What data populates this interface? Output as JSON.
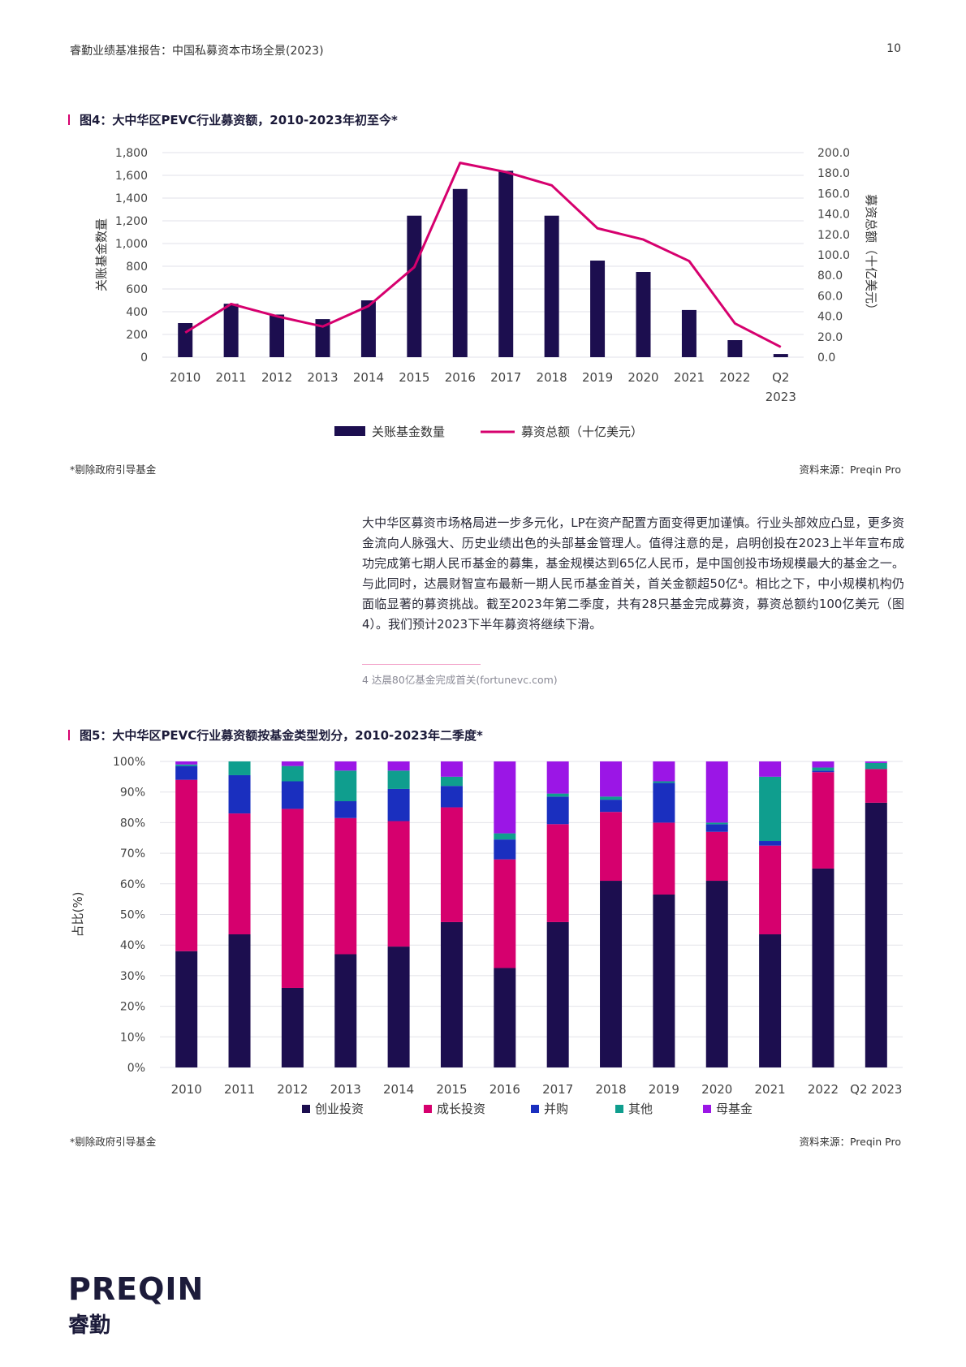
{
  "header": {
    "title": "睿勤业绩基准报告：中国私募资本市场全景(2023)",
    "page_number": "10"
  },
  "fig4": {
    "title": "图4：大中华区PEVC行业募资额，2010-2023年初至今*",
    "note": "*剔除政府引导基金",
    "source": "资料来源：Preqin Pro"
  },
  "body": {
    "paragraph": "大中华区募资市场格局进一步多元化，LP在资产配置方面变得更加谨慎。行业头部效应凸显，更多资金流向人脉强大、历史业绩出色的头部基金管理人。值得注意的是，启明创投在2023上半年宣布成功完成第七期人民币基金的募集，基金规模达到65亿人民币，是中国创投市场规模最大的基金之一。与此同时，达晨财智宣布最新一期人民币基金首关，首关金额超50亿⁴。相比之下，中小规模机构仍面临显著的募资挑战。截至2023年第二季度，共有28只基金完成募资，募资总额约100亿美元（图4）。我们预计2023下半年募资将继续下滑。",
    "footnote": "4 达晨80亿基金完成首关(fortunevc.com)"
  },
  "fig5": {
    "title": "图5：大中华区PEVC行业募资额按基金类型划分，2010-2023年二季度*",
    "note": "*剔除政府引导基金",
    "source": "资料来源：Preqin Pro"
  },
  "logo": {
    "en": "PREQIN",
    "cn": "睿勤"
  },
  "chart_data": [
    {
      "type": "bar+line",
      "title": "图4：大中华区PEVC行业募资额，2010-2023年初至今*",
      "categories": [
        "2010",
        "2011",
        "2012",
        "2013",
        "2014",
        "2015",
        "2016",
        "2017",
        "2018",
        "2019",
        "2020",
        "2021",
        "2022",
        "Q2\n2023"
      ],
      "ylabel_left": "关账基金数量",
      "ylabel_right": "募资总额（十亿美元）",
      "ylim_left": [
        0,
        1800
      ],
      "ylim_right": [
        0,
        200
      ],
      "yticks_left": [
        "0",
        "200",
        "400",
        "600",
        "800",
        "1,000",
        "1,200",
        "1,400",
        "1,600",
        "1,800"
      ],
      "yticks_right": [
        "0.0",
        "20.0",
        "40.0",
        "60.0",
        "80.0",
        "100.0",
        "120.0",
        "140.0",
        "160.0",
        "180.0",
        "200.0"
      ],
      "series": [
        {
          "name": "关账基金数量",
          "type": "bar",
          "axis": "left",
          "color": "#1c0e4f",
          "values": [
            300,
            470,
            375,
            335,
            500,
            1245,
            1480,
            1640,
            1245,
            850,
            750,
            415,
            150,
            28
          ]
        },
        {
          "name": "募资总额（十亿美元）",
          "type": "line",
          "axis": "right",
          "color": "#d6006e",
          "values": [
            24,
            52,
            40,
            30,
            50,
            88,
            190,
            181,
            168,
            126,
            115,
            94,
            33,
            10
          ]
        }
      ],
      "legend": "bottom"
    },
    {
      "type": "stacked-bar",
      "title": "图5：大中华区PEVC行业募资额按基金类型划分，2010-2023年二季度*",
      "categories": [
        "2010",
        "2011",
        "2012",
        "2013",
        "2014",
        "2015",
        "2016",
        "2017",
        "2018",
        "2019",
        "2020",
        "2021",
        "2022",
        "Q2 2023"
      ],
      "ylabel": "占比(%)",
      "ylim": [
        0,
        100
      ],
      "yticks": [
        "0%",
        "10%",
        "20%",
        "30%",
        "40%",
        "50%",
        "60%",
        "70%",
        "80%",
        "90%",
        "100%"
      ],
      "series": [
        {
          "name": "创业投资",
          "color": "#1c0e4f",
          "values": [
            38,
            43.5,
            26,
            37,
            39.5,
            47.5,
            32.5,
            47.5,
            61,
            56.5,
            61,
            43.5,
            65,
            86.5
          ]
        },
        {
          "name": "成长投资",
          "color": "#d6006e",
          "values": [
            56,
            39.5,
            58.5,
            44.5,
            41,
            37.5,
            35.5,
            32,
            22.5,
            23.5,
            16,
            29,
            31.5,
            11
          ]
        },
        {
          "name": "并购",
          "color": "#1a2fbf",
          "values": [
            4.5,
            12.5,
            9,
            5.5,
            10.5,
            7,
            6.5,
            9,
            4,
            13,
            2.5,
            1.5,
            0.5,
            0
          ]
        },
        {
          "name": "其他",
          "color": "#0f9e8e",
          "values": [
            0.5,
            4.5,
            5,
            10,
            6,
            3,
            2,
            1,
            1,
            0.5,
            0.5,
            21,
            1,
            2
          ]
        },
        {
          "name": "母基金",
          "color": "#9b16e6",
          "values": [
            1,
            0,
            1.5,
            3,
            3,
            5,
            23.5,
            10.5,
            11.5,
            6.5,
            20,
            5,
            2,
            0.5
          ]
        }
      ],
      "legend": "bottom"
    }
  ]
}
